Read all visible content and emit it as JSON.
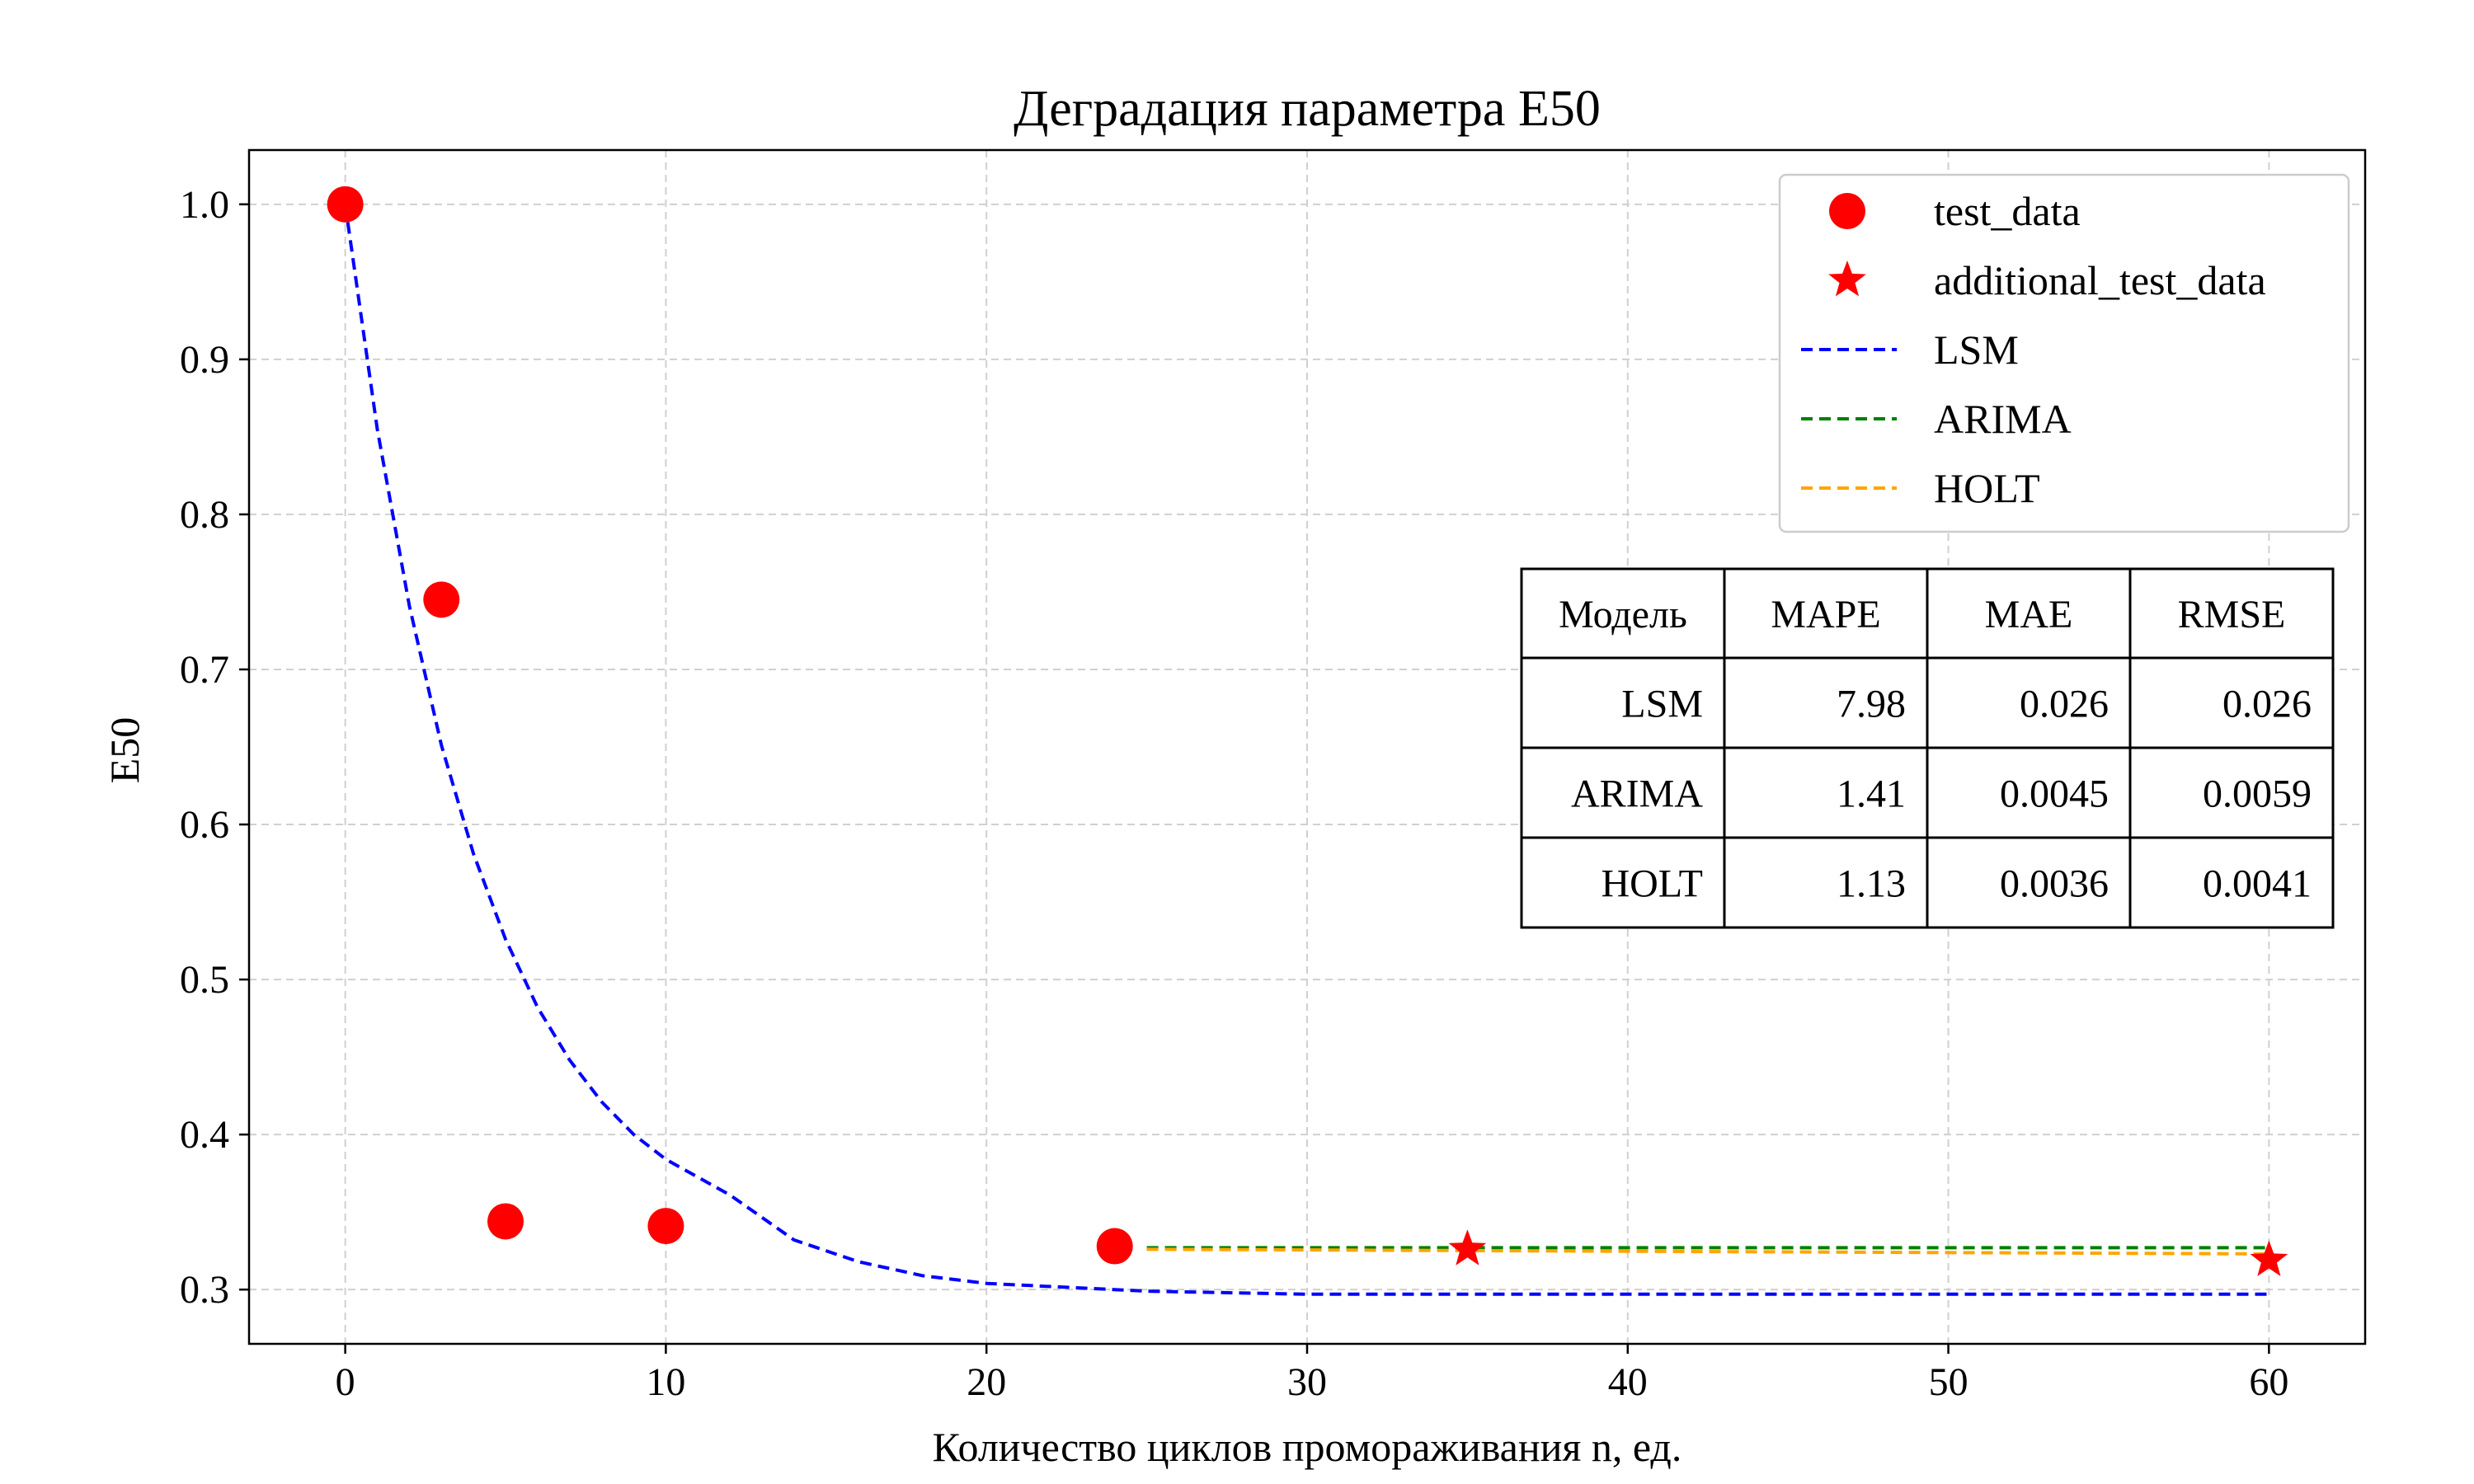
{
  "chart_data": {
    "type": "scatter",
    "title": "Деградация параметра E50",
    "xlabel": "Количество циклов промораживания n, ед.",
    "ylabel": "E50",
    "xlim": [
      -3,
      63
    ],
    "ylim": [
      0.265,
      1.035
    ],
    "xticks": [
      0,
      10,
      20,
      30,
      40,
      50,
      60
    ],
    "xtick_labels": [
      "0",
      "10",
      "20",
      "30",
      "40",
      "50",
      "60"
    ],
    "yticks": [
      0.3,
      0.4,
      0.5,
      0.6,
      0.7,
      0.8,
      0.9,
      1.0
    ],
    "ytick_labels": [
      "0.3",
      "0.4",
      "0.5",
      "0.6",
      "0.7",
      "0.8",
      "0.9",
      "1.0"
    ],
    "grid": true,
    "legend_position": "top-right",
    "series": [
      {
        "name": "test_data",
        "kind": "marker-circle",
        "color": "#ff0000",
        "x": [
          0,
          3,
          5,
          10,
          24
        ],
        "y": [
          1.0,
          0.745,
          0.344,
          0.341,
          0.328
        ]
      },
      {
        "name": "additional_test_data",
        "kind": "marker-star",
        "color": "#ff0000",
        "x": [
          35,
          60
        ],
        "y": [
          0.326,
          0.319
        ]
      },
      {
        "name": "LSM",
        "kind": "dashed-line",
        "color": "#0000ff",
        "x": [
          0,
          1,
          2,
          3,
          4,
          5,
          6,
          7,
          8,
          9,
          10,
          12,
          14,
          16,
          18,
          20,
          25,
          30,
          40,
          50,
          60
        ],
        "y": [
          1.0,
          0.855,
          0.741,
          0.651,
          0.581,
          0.526,
          0.482,
          0.448,
          0.421,
          0.4,
          0.384,
          0.361,
          0.332,
          0.318,
          0.309,
          0.304,
          0.299,
          0.297,
          0.297,
          0.297,
          0.297
        ]
      },
      {
        "name": "ARIMA",
        "kind": "dashed-line",
        "color": "#008000",
        "x": [
          25,
          60
        ],
        "y": [
          0.327,
          0.327
        ]
      },
      {
        "name": "HOLT",
        "kind": "dashed-line",
        "color": "#ffa500",
        "x": [
          25,
          60
        ],
        "y": [
          0.326,
          0.323
        ]
      }
    ],
    "table": {
      "columns": [
        "Модель",
        "MAPE",
        "MAE",
        "RMSE"
      ],
      "rows": [
        [
          "LSM",
          "7.98",
          "0.026",
          "0.026"
        ],
        [
          "ARIMA",
          "1.41",
          "0.0045",
          "0.0059"
        ],
        [
          "HOLT",
          "1.13",
          "0.0036",
          "0.0041"
        ]
      ]
    }
  }
}
